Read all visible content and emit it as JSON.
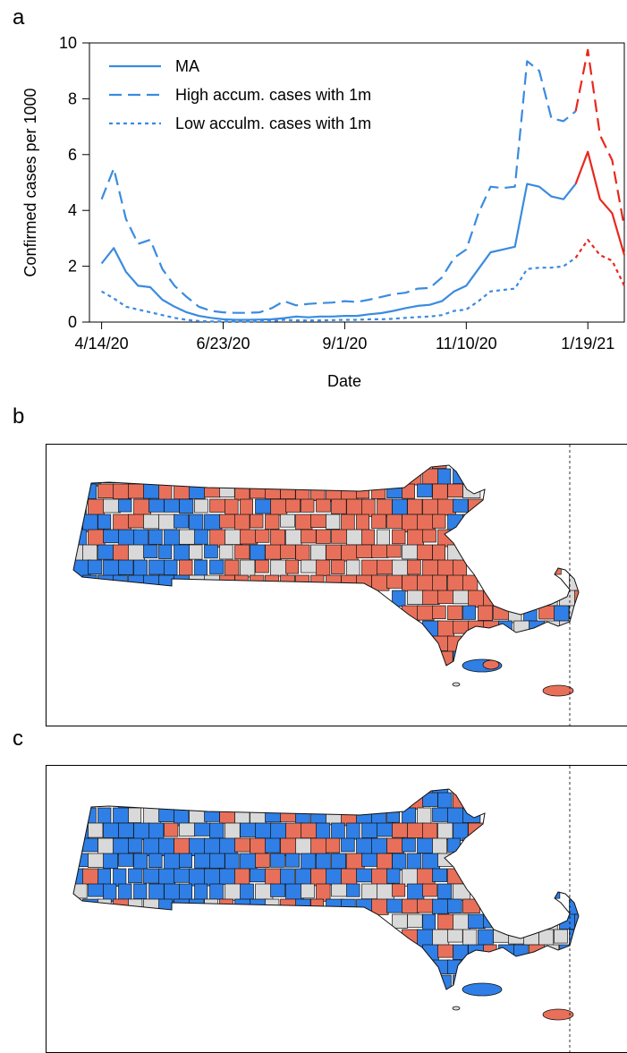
{
  "panels": {
    "a": "a",
    "b": "b",
    "c": "c"
  },
  "colors": {
    "blue": "#3a8be0",
    "red": "#e8281e",
    "map_blue": "#2f7fe6",
    "map_red": "#e8705a",
    "map_gray": "#d9d9d9"
  },
  "chart_data": {
    "type": "line",
    "xlabel": "Date",
    "ylabel": "Confirmed cases per 1000",
    "ylim": [
      0,
      10
    ],
    "yticks": [
      0,
      2,
      4,
      6,
      8,
      10
    ],
    "xlim": [
      "2020-04-07",
      "2021-02-09"
    ],
    "xticks": [
      {
        "date": "2020-04-14",
        "label": "4/14/20"
      },
      {
        "date": "2020-06-23",
        "label": "6/23/20"
      },
      {
        "date": "2020-09-01",
        "label": "9/1/20"
      },
      {
        "date": "2020-11-10",
        "label": "11/10/20"
      },
      {
        "date": "2021-01-19",
        "label": "1/19/21"
      }
    ],
    "split_date": "2021-01-12",
    "legend": {
      "placement": "top-left",
      "entries": [
        {
          "label": "MA",
          "style": "solid"
        },
        {
          "label": "High accum. cases with 1m",
          "style": "dashed"
        },
        {
          "label": "Low acculm. cases with 1m",
          "style": "dotted"
        }
      ]
    },
    "series": [
      {
        "key": "ma",
        "style": "solid",
        "points": [
          [
            "2020-04-14",
            2.1
          ],
          [
            "2020-04-21",
            2.65
          ],
          [
            "2020-04-28",
            1.8
          ],
          [
            "2020-05-05",
            1.3
          ],
          [
            "2020-05-12",
            1.25
          ],
          [
            "2020-05-19",
            0.8
          ],
          [
            "2020-05-26",
            0.55
          ],
          [
            "2020-06-02",
            0.35
          ],
          [
            "2020-06-09",
            0.22
          ],
          [
            "2020-06-16",
            0.15
          ],
          [
            "2020-06-23",
            0.1
          ],
          [
            "2020-06-30",
            0.08
          ],
          [
            "2020-07-07",
            0.08
          ],
          [
            "2020-07-14",
            0.09
          ],
          [
            "2020-07-21",
            0.1
          ],
          [
            "2020-07-28",
            0.14
          ],
          [
            "2020-08-04",
            0.2
          ],
          [
            "2020-08-11",
            0.17
          ],
          [
            "2020-08-18",
            0.2
          ],
          [
            "2020-08-25",
            0.2
          ],
          [
            "2020-09-01",
            0.22
          ],
          [
            "2020-09-08",
            0.22
          ],
          [
            "2020-09-15",
            0.28
          ],
          [
            "2020-09-22",
            0.32
          ],
          [
            "2020-09-29",
            0.4
          ],
          [
            "2020-10-06",
            0.5
          ],
          [
            "2020-10-13",
            0.58
          ],
          [
            "2020-10-20",
            0.62
          ],
          [
            "2020-10-27",
            0.75
          ],
          [
            "2020-11-03",
            1.1
          ],
          [
            "2020-11-10",
            1.3
          ],
          [
            "2020-11-17",
            1.9
          ],
          [
            "2020-11-24",
            2.5
          ],
          [
            "2020-12-01",
            2.6
          ],
          [
            "2020-12-08",
            2.7
          ],
          [
            "2020-12-15",
            4.95
          ],
          [
            "2020-12-22",
            4.85
          ],
          [
            "2020-12-29",
            4.5
          ],
          [
            "2021-01-05",
            4.4
          ],
          [
            "2021-01-12",
            4.95
          ],
          [
            "2021-01-19",
            6.1
          ],
          [
            "2021-01-26",
            4.4
          ],
          [
            "2021-02-02",
            3.9
          ],
          [
            "2021-02-09",
            2.4
          ]
        ]
      },
      {
        "key": "high",
        "style": "dashed",
        "points": [
          [
            "2020-04-14",
            4.4
          ],
          [
            "2020-04-21",
            5.5
          ],
          [
            "2020-04-28",
            3.7
          ],
          [
            "2020-05-05",
            2.8
          ],
          [
            "2020-05-12",
            2.95
          ],
          [
            "2020-05-19",
            1.9
          ],
          [
            "2020-05-26",
            1.3
          ],
          [
            "2020-06-02",
            0.9
          ],
          [
            "2020-06-09",
            0.55
          ],
          [
            "2020-06-16",
            0.4
          ],
          [
            "2020-06-23",
            0.35
          ],
          [
            "2020-06-30",
            0.33
          ],
          [
            "2020-07-07",
            0.33
          ],
          [
            "2020-07-14",
            0.35
          ],
          [
            "2020-07-21",
            0.5
          ],
          [
            "2020-07-28",
            0.75
          ],
          [
            "2020-08-04",
            0.6
          ],
          [
            "2020-08-11",
            0.65
          ],
          [
            "2020-08-18",
            0.68
          ],
          [
            "2020-08-25",
            0.7
          ],
          [
            "2020-09-01",
            0.75
          ],
          [
            "2020-09-08",
            0.72
          ],
          [
            "2020-09-15",
            0.8
          ],
          [
            "2020-09-22",
            0.9
          ],
          [
            "2020-09-29",
            1.0
          ],
          [
            "2020-10-06",
            1.05
          ],
          [
            "2020-10-13",
            1.2
          ],
          [
            "2020-10-20",
            1.22
          ],
          [
            "2020-10-27",
            1.6
          ],
          [
            "2020-11-03",
            2.3
          ],
          [
            "2020-11-10",
            2.6
          ],
          [
            "2020-11-17",
            3.9
          ],
          [
            "2020-11-24",
            4.85
          ],
          [
            "2020-12-01",
            4.8
          ],
          [
            "2020-12-08",
            4.85
          ],
          [
            "2020-12-15",
            9.35
          ],
          [
            "2020-12-22",
            9.0
          ],
          [
            "2020-12-29",
            7.3
          ],
          [
            "2021-01-05",
            7.2
          ],
          [
            "2021-01-12",
            7.55
          ],
          [
            "2021-01-19",
            9.75
          ],
          [
            "2021-01-26",
            6.7
          ],
          [
            "2021-02-02",
            5.8
          ],
          [
            "2021-02-09",
            3.4
          ]
        ]
      },
      {
        "key": "low",
        "style": "dotted",
        "points": [
          [
            "2020-04-14",
            1.1
          ],
          [
            "2020-04-21",
            0.85
          ],
          [
            "2020-04-28",
            0.55
          ],
          [
            "2020-05-05",
            0.45
          ],
          [
            "2020-05-12",
            0.35
          ],
          [
            "2020-05-19",
            0.25
          ],
          [
            "2020-05-26",
            0.15
          ],
          [
            "2020-06-02",
            0.08
          ],
          [
            "2020-06-09",
            0.04
          ],
          [
            "2020-06-16",
            0.02
          ],
          [
            "2020-06-23",
            0.02
          ],
          [
            "2020-06-30",
            0.02
          ],
          [
            "2020-07-07",
            0.02
          ],
          [
            "2020-07-14",
            0.03
          ],
          [
            "2020-07-21",
            0.04
          ],
          [
            "2020-07-28",
            0.08
          ],
          [
            "2020-08-04",
            0.06
          ],
          [
            "2020-08-11",
            0.06
          ],
          [
            "2020-08-18",
            0.06
          ],
          [
            "2020-08-25",
            0.07
          ],
          [
            "2020-09-01",
            0.08
          ],
          [
            "2020-09-08",
            0.08
          ],
          [
            "2020-09-15",
            0.1
          ],
          [
            "2020-09-22",
            0.1
          ],
          [
            "2020-09-29",
            0.12
          ],
          [
            "2020-10-06",
            0.15
          ],
          [
            "2020-10-13",
            0.18
          ],
          [
            "2020-10-20",
            0.2
          ],
          [
            "2020-10-27",
            0.25
          ],
          [
            "2020-11-03",
            0.4
          ],
          [
            "2020-11-10",
            0.45
          ],
          [
            "2020-11-17",
            0.75
          ],
          [
            "2020-11-24",
            1.1
          ],
          [
            "2020-12-01",
            1.15
          ],
          [
            "2020-12-08",
            1.2
          ],
          [
            "2020-12-15",
            1.9
          ],
          [
            "2020-12-22",
            1.95
          ],
          [
            "2020-12-29",
            1.95
          ],
          [
            "2021-01-05",
            2.0
          ],
          [
            "2021-01-12",
            2.3
          ],
          [
            "2021-01-19",
            2.95
          ],
          [
            "2021-01-26",
            2.4
          ],
          [
            "2021-02-02",
            2.2
          ],
          [
            "2021-02-09",
            1.3
          ]
        ]
      }
    ]
  },
  "maps": {
    "b": {
      "description_color_mix": "red-heavy",
      "red_share": 0.45,
      "gray_share": 0.12
    },
    "c": {
      "description_color_mix": "blue-heavy",
      "red_share": 0.18,
      "gray_share": 0.16
    }
  }
}
